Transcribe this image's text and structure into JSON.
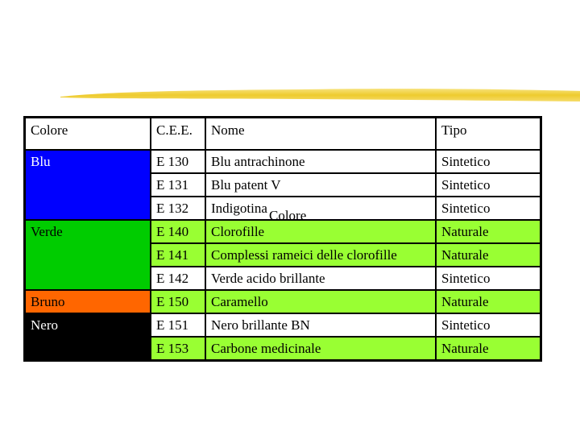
{
  "colors": {
    "blu": "#0000ff",
    "verde": "#00cc00",
    "bruno": "#ff6600",
    "nero": "#000000",
    "row_green": "#99ff33",
    "brush": "#f2d03b"
  },
  "headers": [
    "Colore",
    "C.E.E.",
    "Nome",
    "Tipo"
  ],
  "groups": [
    {
      "colore": "Blu",
      "color": "#0000ff"
    },
    {
      "colore": "Verde",
      "color": "#00cc00"
    },
    {
      "colore": "Bruno",
      "color": "#ff6600"
    },
    {
      "colore": "Nero",
      "color": "#000000"
    }
  ],
  "rows": [
    {
      "cee": "E 130",
      "nome": "Blu antrachinone",
      "tipo": "Sintetico"
    },
    {
      "cee": "E 131",
      "nome": "Blu patent V",
      "tipo": "Sintetico"
    },
    {
      "cee": "E 132",
      "nome": "Indigotina",
      "tipo": "Sintetico"
    },
    {
      "cee": "E 140",
      "nome": "Clorofille",
      "tipo": "Naturale"
    },
    {
      "cee": "E 141",
      "nome": "Complessi rameici delle clorofille",
      "tipo": "Naturale"
    },
    {
      "cee": "E 142",
      "nome": "Verde acido brillante",
      "tipo": "Sintetico"
    },
    {
      "cee": "E 150",
      "nome": "Caramello",
      "tipo": "Naturale"
    },
    {
      "cee": "E 151",
      "nome": "Nero brillante BN",
      "tipo": "Sintetico"
    },
    {
      "cee": "E 153",
      "nome": "Carbone medicinale",
      "tipo": "Naturale"
    }
  ],
  "overlay_text": "Colore"
}
